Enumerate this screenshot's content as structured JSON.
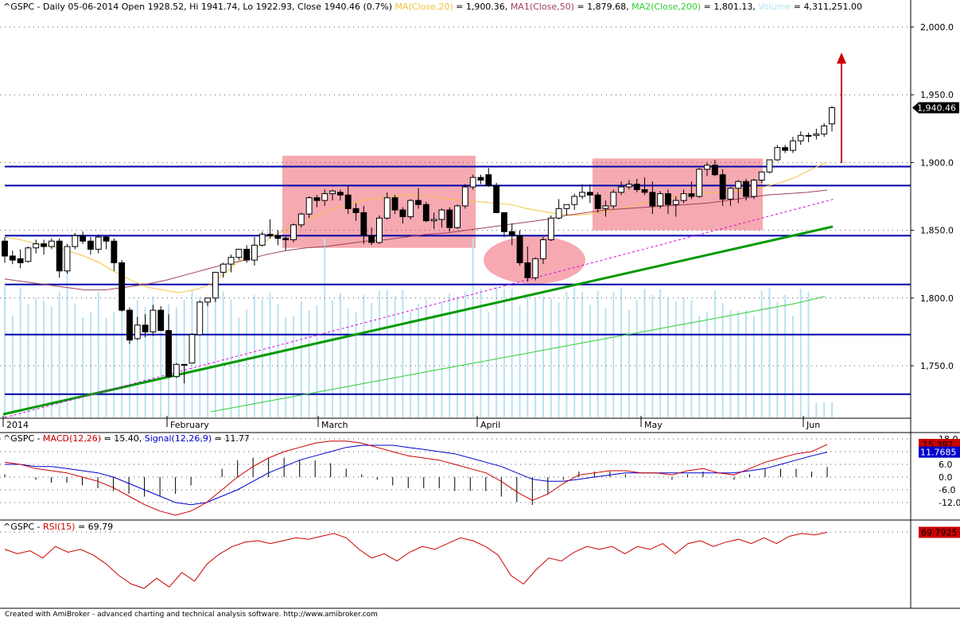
{
  "header": {
    "main_prefix": "^GSPC - Daily 05-06-2014 Open 1928.52, Hi 1941.74, Lo 1922.93, Close 1940.46 (0.7%)",
    "ma20_label": "MA(Close,20)",
    "ma20_value": " = 1,900.36,",
    "ma50_label": "MA1(Close,50)",
    "ma50_value": " = 1,879.68,",
    "ma200_label": "MA2(Close,200)",
    "ma200_value": " = 1,801.13,",
    "volume_label": "Volume",
    "volume_value": " = 4,311,251.00",
    "macd_prefix": "^GSPC - ",
    "macd_label": "MACD(12,26)",
    "macd_value": " = 15.40, ",
    "signal_label": "Signal(12,26,9)",
    "signal_value": " = 11.77",
    "rsi_prefix": "^GSPC - ",
    "rsi_label": "RSI(15)",
    "rsi_value": " = 69.79"
  },
  "footer": "Created with AmiBroker - advanced charting and technical analysis software. http://www.amibroker.com",
  "colors": {
    "up_candle": "#ffffff",
    "down_candle": "#000000",
    "ma20": "#f5c242",
    "ma50": "#a0405a",
    "ma200": "#33cc33",
    "volume": "#b7e3f2",
    "hline": "#0000aa",
    "trend": "#009900",
    "dashed_trend": "#dd00dd",
    "zone": "#f6a9b1",
    "arrow": "#cc0000",
    "macd": "#cc0000",
    "signal": "#0000cc",
    "rsi": "#cc0000"
  },
  "chart_data": [
    {
      "type": "candlestick",
      "title": "^GSPC - Daily",
      "x_labels": [
        "2014",
        "February",
        "March",
        "April",
        "May",
        "Jun"
      ],
      "y_ticks": [
        "1,750.0",
        "1,800.0",
        "1,850.0",
        "1,900.0",
        "1,950.0",
        "2,000.0"
      ],
      "ylim": [
        1712,
        2012
      ],
      "last_close_label": "1,940.46",
      "horizontal_levels": [
        1897,
        1883,
        1846,
        1810,
        1773,
        1729
      ],
      "candles": [
        [
          1842,
          1845,
          1826,
          1831
        ],
        [
          1831,
          1835,
          1825,
          1828
        ],
        [
          1829,
          1836,
          1822,
          1826
        ],
        [
          1827,
          1838,
          1826,
          1837
        ],
        [
          1837,
          1843,
          1833,
          1840
        ],
        [
          1840,
          1843,
          1832,
          1838
        ],
        [
          1838,
          1844,
          1836,
          1842
        ],
        [
          1842,
          1844,
          1815,
          1820
        ],
        [
          1820,
          1840,
          1818,
          1838
        ],
        [
          1838,
          1848,
          1836,
          1846
        ],
        [
          1846,
          1849,
          1840,
          1842
        ],
        [
          1842,
          1845,
          1832,
          1836
        ],
        [
          1836,
          1847,
          1833,
          1845
        ],
        [
          1845,
          1846,
          1836,
          1842
        ],
        [
          1842,
          1844,
          1820,
          1826
        ],
        [
          1826,
          1828,
          1790,
          1791
        ],
        [
          1791,
          1793,
          1766,
          1769
        ],
        [
          1770,
          1786,
          1769,
          1780
        ],
        [
          1780,
          1788,
          1771,
          1775
        ],
        [
          1775,
          1795,
          1772,
          1791
        ],
        [
          1791,
          1794,
          1776,
          1776
        ],
        [
          1776,
          1788,
          1741,
          1742
        ],
        [
          1742,
          1752,
          1741,
          1751
        ],
        [
          1751,
          1751,
          1737,
          1751
        ],
        [
          1752,
          1774,
          1752,
          1773
        ],
        [
          1773,
          1798,
          1773,
          1797
        ],
        [
          1797,
          1800,
          1794,
          1800
        ],
        [
          1800,
          1819,
          1797,
          1819
        ],
        [
          1819,
          1826,
          1815,
          1825
        ],
        [
          1825,
          1832,
          1819,
          1830
        ],
        [
          1830,
          1836,
          1828,
          1836
        ],
        [
          1836,
          1839,
          1826,
          1828
        ],
        [
          1828,
          1845,
          1824,
          1839
        ],
        [
          1839,
          1849,
          1838,
          1847
        ],
        [
          1847,
          1858,
          1844,
          1846
        ],
        [
          1846,
          1850,
          1839,
          1844
        ],
        [
          1844,
          1846,
          1835,
          1843
        ],
        [
          1843,
          1855,
          1841,
          1854
        ],
        [
          1854,
          1863,
          1852,
          1862
        ],
        [
          1862,
          1875,
          1859,
          1874
        ],
        [
          1874,
          1876,
          1867,
          1872
        ],
        [
          1872,
          1880,
          1868,
          1877
        ],
        [
          1877,
          1880,
          1872,
          1879
        ],
        [
          1878,
          1880,
          1872,
          1876
        ],
        [
          1876,
          1883,
          1862,
          1866
        ],
        [
          1866,
          1870,
          1857,
          1863
        ],
        [
          1863,
          1868,
          1840,
          1846
        ],
        [
          1846,
          1852,
          1839,
          1841
        ],
        [
          1841,
          1861,
          1840,
          1859
        ],
        [
          1859,
          1878,
          1858,
          1874
        ],
        [
          1874,
          1876,
          1862,
          1865
        ],
        [
          1865,
          1867,
          1855,
          1860
        ],
        [
          1860,
          1873,
          1858,
          1872
        ],
        [
          1872,
          1881,
          1866,
          1869
        ],
        [
          1869,
          1871,
          1856,
          1857
        ],
        [
          1857,
          1863,
          1851,
          1858
        ],
        [
          1858,
          1866,
          1852,
          1865
        ],
        [
          1865,
          1867,
          1849,
          1852
        ],
        [
          1852,
          1869,
          1851,
          1868
        ],
        [
          1868,
          1884,
          1866,
          1882
        ],
        [
          1882,
          1891,
          1880,
          1889
        ],
        [
          1889,
          1891,
          1884,
          1887
        ],
        [
          1891,
          1896,
          1882,
          1883
        ],
        [
          1883,
          1885,
          1863,
          1863
        ],
        [
          1863,
          1863,
          1845,
          1849
        ],
        [
          1849,
          1855,
          1839,
          1846
        ],
        [
          1846,
          1850,
          1824,
          1826
        ],
        [
          1826,
          1838,
          1812,
          1815
        ],
        [
          1815,
          1830,
          1813,
          1829
        ],
        [
          1829,
          1845,
          1825,
          1843
        ],
        [
          1843,
          1861,
          1842,
          1859
        ],
        [
          1859,
          1873,
          1858,
          1866
        ],
        [
          1866,
          1869,
          1861,
          1869
        ],
        [
          1869,
          1877,
          1865,
          1875
        ],
        [
          1875,
          1884,
          1873,
          1878
        ],
        [
          1878,
          1884,
          1870,
          1876
        ],
        [
          1876,
          1878,
          1863,
          1866
        ],
        [
          1866,
          1872,
          1860,
          1868
        ],
        [
          1868,
          1880,
          1866,
          1878
        ],
        [
          1878,
          1886,
          1876,
          1882
        ],
        [
          1882,
          1887,
          1880,
          1884
        ],
        [
          1884,
          1888,
          1878,
          1880
        ],
        [
          1880,
          1889,
          1876,
          1878
        ],
        [
          1878,
          1886,
          1862,
          1868
        ],
        [
          1868,
          1879,
          1866,
          1877
        ],
        [
          1877,
          1880,
          1862,
          1869
        ],
        [
          1869,
          1875,
          1860,
          1872
        ],
        [
          1872,
          1880,
          1870,
          1877
        ],
        [
          1877,
          1886,
          1873,
          1875
        ],
        [
          1875,
          1896,
          1874,
          1895
        ],
        [
          1895,
          1900,
          1890,
          1898
        ],
        [
          1898,
          1902,
          1890,
          1891
        ],
        [
          1891,
          1895,
          1868,
          1873
        ],
        [
          1873,
          1882,
          1868,
          1881
        ],
        [
          1881,
          1887,
          1870,
          1886
        ],
        [
          1886,
          1888,
          1872,
          1875
        ],
        [
          1875,
          1888,
          1873,
          1887
        ],
        [
          1887,
          1893,
          1885,
          1893
        ],
        [
          1893,
          1902,
          1892,
          1902
        ],
        [
          1902,
          1913,
          1901,
          1911
        ],
        [
          1911,
          1913,
          1907,
          1909
        ],
        [
          1909,
          1919,
          1907,
          1916
        ],
        [
          1916,
          1923,
          1913,
          1920
        ],
        [
          1920,
          1922,
          1915,
          1920
        ],
        [
          1920,
          1925,
          1917,
          1921
        ],
        [
          1921,
          1929,
          1919,
          1927
        ],
        [
          1928.52,
          1941.74,
          1922.93,
          1940.46
        ]
      ],
      "moving_averages": {
        "ma20": [
          1845,
          1843,
          1840,
          1838,
          1835,
          1831,
          1826,
          1819,
          1813,
          1808,
          1806,
          1804,
          1806,
          1810,
          1819,
          1829,
          1838,
          1846,
          1852,
          1857,
          1862,
          1867,
          1870,
          1873,
          1874,
          1876,
          1876,
          1875,
          1873,
          1872,
          1871,
          1870,
          1869,
          1866,
          1864,
          1862,
          1861,
          1862,
          1864,
          1866,
          1869,
          1872,
          1874,
          1876,
          1877,
          1878,
          1879,
          1880,
          1882,
          1885,
          1889,
          1895,
          1900.36
        ],
        "ma50": [
          1814,
          1812,
          1810,
          1808,
          1806,
          1806,
          1808,
          1810,
          1813,
          1817,
          1821,
          1825,
          1828,
          1832,
          1835,
          1837,
          1838,
          1840,
          1842,
          1843,
          1845,
          1847,
          1848,
          1850,
          1852,
          1854,
          1856,
          1858,
          1861,
          1863,
          1865,
          1866,
          1867,
          1868,
          1869,
          1870,
          1872,
          1874,
          1876,
          1877,
          1878,
          1879.68
        ],
        "ma200": [
          1716,
          1720,
          1724,
          1728,
          1732,
          1736,
          1740,
          1744,
          1748,
          1752,
          1756,
          1760,
          1764,
          1768,
          1772,
          1776,
          1780,
          1784,
          1788,
          1792,
          1796,
          1801.13
        ]
      },
      "volume_last": "4,311,251.00"
    },
    {
      "type": "line",
      "title": "MACD(12,26) / Signal(12,26,9)",
      "y_ticks": [
        "-12.0",
        "-6.0",
        "0.0",
        "6.0",
        "12.0",
        "18.0"
      ],
      "ylim": [
        -20,
        20
      ],
      "series": [
        {
          "name": "MACD(12,26)",
          "last_label": "15.397",
          "values": [
            7,
            6,
            4,
            3,
            2,
            0,
            -2,
            -5,
            -9,
            -13,
            -16,
            -18,
            -16,
            -12,
            -6,
            0,
            5,
            9,
            12,
            14,
            16,
            17,
            17,
            16,
            14,
            12,
            10,
            9,
            8,
            6,
            4,
            2,
            -2,
            -7,
            -11,
            -8,
            -3,
            1,
            2,
            3,
            3,
            2,
            2,
            1,
            3,
            4,
            2,
            1,
            4,
            7,
            9,
            11,
            12,
            15.4
          ]
        },
        {
          "name": "Signal(12,26,9)",
          "last_label": "11.7685",
          "values": [
            6,
            6,
            5,
            5,
            4,
            3,
            2,
            0,
            -3,
            -6,
            -9,
            -12,
            -13,
            -12,
            -9,
            -6,
            -2,
            2,
            5,
            8,
            10,
            12,
            14,
            15,
            15,
            15,
            14,
            13,
            12,
            11,
            9,
            7,
            5,
            2,
            -1,
            -2,
            -2,
            -1,
            0,
            1,
            2,
            2,
            2,
            2,
            2,
            2,
            2,
            2,
            3,
            4,
            6,
            8,
            10,
            11.77
          ]
        }
      ]
    },
    {
      "type": "line",
      "title": "RSI(15)",
      "ylim": [
        20,
        80
      ],
      "series": [
        {
          "name": "RSI(15)",
          "last_label": "69.7925",
          "values": [
            58,
            55,
            57,
            52,
            60,
            56,
            58,
            54,
            48,
            40,
            34,
            31,
            38,
            32,
            42,
            36,
            48,
            55,
            60,
            63,
            64,
            62,
            64,
            66,
            65,
            67,
            69,
            66,
            58,
            52,
            55,
            50,
            56,
            60,
            58,
            62,
            66,
            64,
            60,
            54,
            40,
            34,
            44,
            52,
            50,
            56,
            60,
            58,
            60,
            55,
            60,
            58,
            62,
            55,
            62,
            64,
            60,
            63,
            65,
            62,
            66,
            62,
            67,
            69,
            68,
            69.79
          ]
        }
      ]
    }
  ]
}
